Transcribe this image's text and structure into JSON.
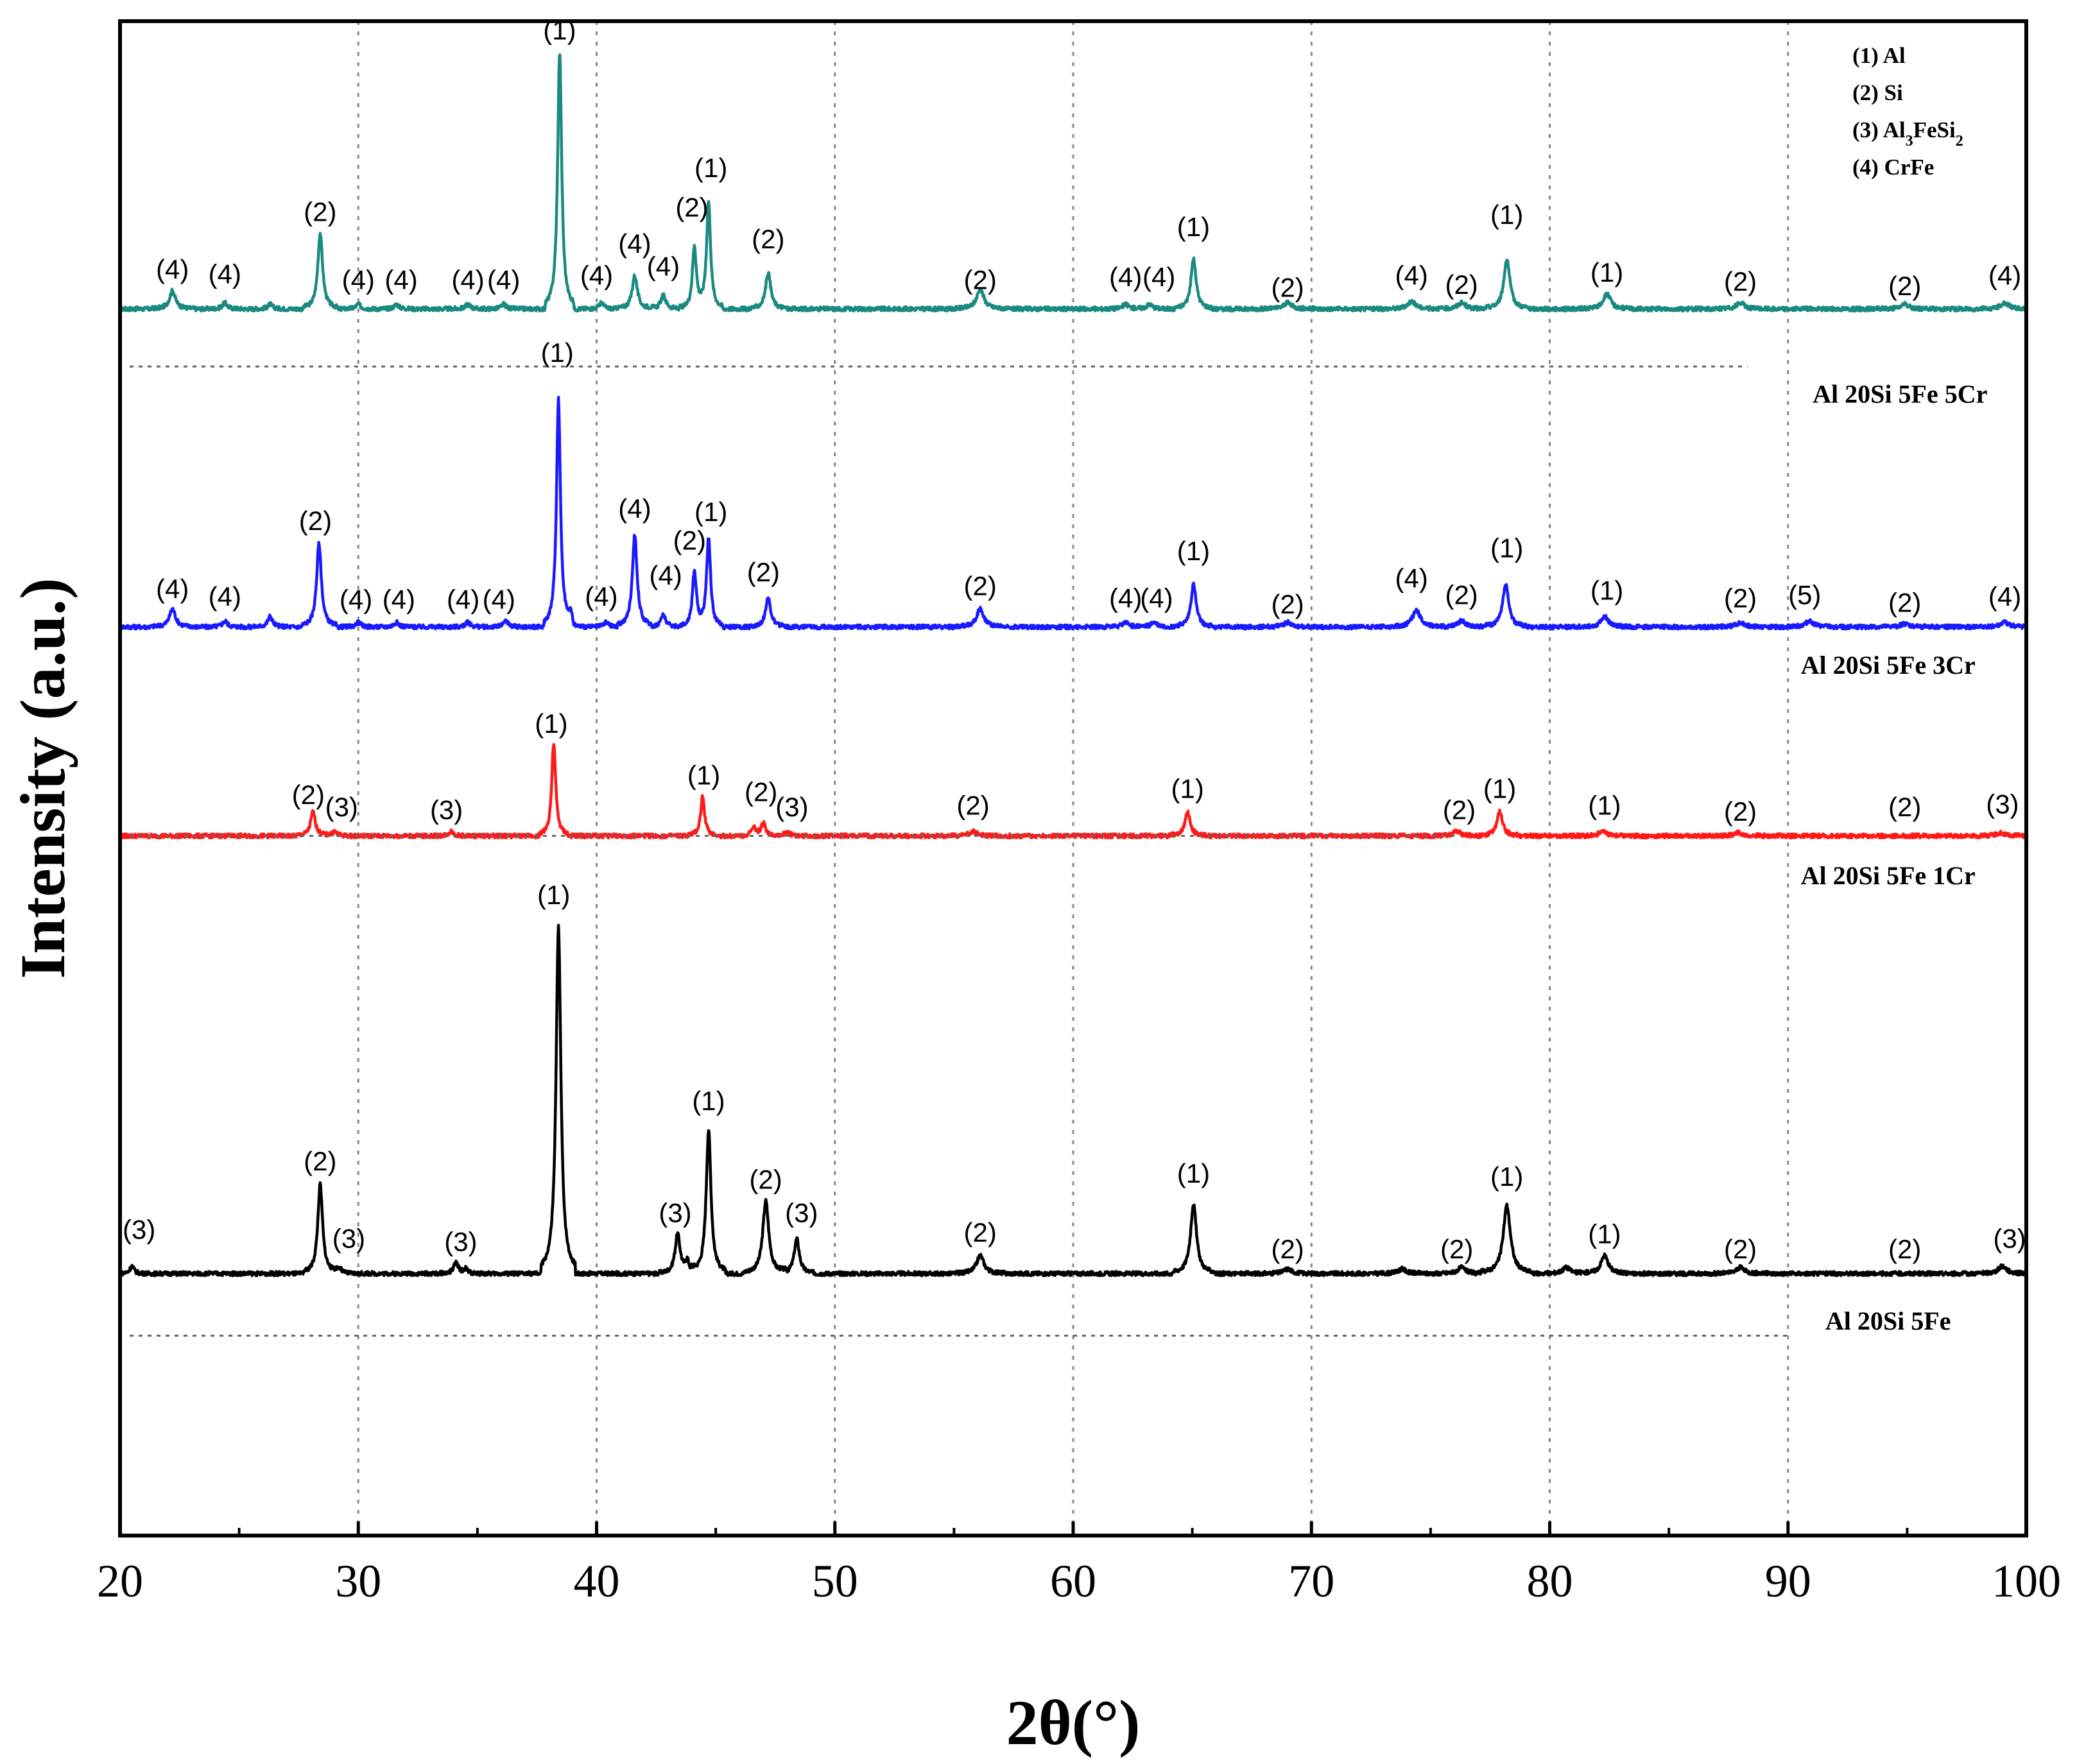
{
  "chart_data": {
    "type": "line",
    "title": "",
    "xlabel": "2θ(°)",
    "ylabel": "Intensity (a.u.)",
    "xlim": [
      20,
      100
    ],
    "ylim": [
      0,
      100
    ],
    "x_ticks": [
      "20",
      "30",
      "40",
      "50",
      "60",
      "70",
      "80",
      "90",
      "100"
    ],
    "y_ticks_shown": false,
    "grid": "dotted vertical lines at 30, 40, 50, 60, 70, 80, 90",
    "legend": {
      "placement": "top-right",
      "entries": [
        {
          "text": "(1) Al",
          "sub": "",
          "tail": ""
        },
        {
          "text": "(2) Si",
          "sub": "",
          "tail": ""
        },
        {
          "text": "(3) Al",
          "sub": "3",
          "tail": "FeSi",
          "sub2": "2"
        },
        {
          "text": "(4) CrFe",
          "sub": "",
          "tail": ""
        }
      ]
    },
    "series": [
      {
        "name": "Al 20Si 5Fe 5Cr",
        "color": "#1a8a80",
        "baseline": 81.0,
        "ref_line": 77.2,
        "ref_line_xmax": 88.3,
        "label_y": 74.8,
        "label_x": 94.7,
        "peaks": [
          {
            "x": 22.2,
            "h": 1.2,
            "w": 0.15
          },
          {
            "x": 24.4,
            "h": 0.4,
            "w": 0.12
          },
          {
            "x": 26.3,
            "h": 0.3,
            "w": 0.12
          },
          {
            "x": 28.4,
            "h": 5.0,
            "w": 0.12
          },
          {
            "x": 30.0,
            "h": 0.3,
            "w": 0.12
          },
          {
            "x": 31.6,
            "h": 0.3,
            "w": 0.12
          },
          {
            "x": 34.6,
            "h": 0.3,
            "w": 0.12
          },
          {
            "x": 36.1,
            "h": 0.3,
            "w": 0.12
          },
          {
            "x": 38.45,
            "h": 17.0,
            "w": 0.1
          },
          {
            "x": 40.2,
            "h": 0.4,
            "w": 0.12
          },
          {
            "x": 41.6,
            "h": 2.2,
            "w": 0.13
          },
          {
            "x": 42.8,
            "h": 0.9,
            "w": 0.13
          },
          {
            "x": 44.1,
            "h": 4.1,
            "w": 0.1
          },
          {
            "x": 44.7,
            "h": 7.1,
            "w": 0.1
          },
          {
            "x": 47.2,
            "h": 2.4,
            "w": 0.13
          },
          {
            "x": 56.1,
            "h": 1.3,
            "w": 0.18
          },
          {
            "x": 62.2,
            "h": 0.3,
            "w": 0.15
          },
          {
            "x": 63.2,
            "h": 0.3,
            "w": 0.15
          },
          {
            "x": 65.05,
            "h": 3.3,
            "w": 0.13
          },
          {
            "x": 69.0,
            "h": 0.4,
            "w": 0.2
          },
          {
            "x": 74.2,
            "h": 0.5,
            "w": 0.2
          },
          {
            "x": 76.3,
            "h": 0.4,
            "w": 0.2
          },
          {
            "x": 78.2,
            "h": 3.3,
            "w": 0.15
          },
          {
            "x": 82.4,
            "h": 1.0,
            "w": 0.18
          },
          {
            "x": 88.0,
            "h": 0.4,
            "w": 0.2
          },
          {
            "x": 94.9,
            "h": 0.3,
            "w": 0.2
          },
          {
            "x": 99.1,
            "h": 0.4,
            "w": 0.2
          }
        ],
        "labels": [
          {
            "t": "(4)",
            "x": 22.2,
            "y": 83.0
          },
          {
            "t": "(4)",
            "x": 24.4,
            "y": 82.7
          },
          {
            "t": "(2)",
            "x": 28.4,
            "y": 86.8
          },
          {
            "t": "(4)",
            "x": 30.0,
            "y": 82.3
          },
          {
            "t": "(4)",
            "x": 31.8,
            "y": 82.3
          },
          {
            "t": "(4)",
            "x": 34.6,
            "y": 82.3
          },
          {
            "t": "(4)",
            "x": 36.1,
            "y": 82.3
          },
          {
            "t": "(1)",
            "x": 38.45,
            "y": 98.8
          },
          {
            "t": "(4)",
            "x": 40.0,
            "y": 82.6
          },
          {
            "t": "(4)",
            "x": 41.6,
            "y": 84.7
          },
          {
            "t": "(4)",
            "x": 42.8,
            "y": 83.2
          },
          {
            "t": "(2)",
            "x": 44.0,
            "y": 87.1
          },
          {
            "t": "(1)",
            "x": 44.8,
            "y": 89.7
          },
          {
            "t": "(2)",
            "x": 47.2,
            "y": 85.0
          },
          {
            "t": "(2)",
            "x": 56.1,
            "y": 82.3
          },
          {
            "t": "(4)",
            "x": 62.2,
            "y": 82.5
          },
          {
            "t": "(4)",
            "x": 63.6,
            "y": 82.5
          },
          {
            "t": "(1)",
            "x": 65.05,
            "y": 85.8
          },
          {
            "t": "(2)",
            "x": 69.0,
            "y": 81.8
          },
          {
            "t": "(4)",
            "x": 74.2,
            "y": 82.6
          },
          {
            "t": "(2)",
            "x": 76.3,
            "y": 82.0
          },
          {
            "t": "(1)",
            "x": 78.2,
            "y": 86.6
          },
          {
            "t": "(1)",
            "x": 82.4,
            "y": 82.8
          },
          {
            "t": "(2)",
            "x": 88.0,
            "y": 82.2
          },
          {
            "t": "(2)",
            "x": 94.9,
            "y": 81.9
          },
          {
            "t": "(4)",
            "x": 99.1,
            "y": 82.6
          }
        ]
      },
      {
        "name": "Al 20Si 5Fe 3Cr",
        "color": "#1a1aff",
        "baseline": 60.0,
        "ref_line": null,
        "label_y": 56.9,
        "label_x": 94.2,
        "peaks": [
          {
            "x": 22.2,
            "h": 1.2,
            "w": 0.15
          },
          {
            "x": 24.4,
            "h": 0.4,
            "w": 0.12
          },
          {
            "x": 26.3,
            "h": 0.7,
            "w": 0.12
          },
          {
            "x": 28.35,
            "h": 5.5,
            "w": 0.12
          },
          {
            "x": 30.0,
            "h": 0.3,
            "w": 0.12
          },
          {
            "x": 31.6,
            "h": 0.3,
            "w": 0.12
          },
          {
            "x": 34.6,
            "h": 0.3,
            "w": 0.12
          },
          {
            "x": 36.2,
            "h": 0.4,
            "w": 0.12
          },
          {
            "x": 38.4,
            "h": 15.0,
            "w": 0.1
          },
          {
            "x": 38.9,
            "h": 0.6,
            "w": 0.12
          },
          {
            "x": 40.4,
            "h": 0.3,
            "w": 0.12
          },
          {
            "x": 41.6,
            "h": 6.1,
            "w": 0.12
          },
          {
            "x": 42.8,
            "h": 0.8,
            "w": 0.13
          },
          {
            "x": 44.1,
            "h": 3.7,
            "w": 0.1
          },
          {
            "x": 44.7,
            "h": 5.9,
            "w": 0.1
          },
          {
            "x": 47.2,
            "h": 1.9,
            "w": 0.13
          },
          {
            "x": 56.1,
            "h": 1.2,
            "w": 0.18
          },
          {
            "x": 62.2,
            "h": 0.3,
            "w": 0.15
          },
          {
            "x": 63.4,
            "h": 0.3,
            "w": 0.15
          },
          {
            "x": 65.05,
            "h": 2.8,
            "w": 0.13
          },
          {
            "x": 69.0,
            "h": 0.3,
            "w": 0.2
          },
          {
            "x": 74.4,
            "h": 1.1,
            "w": 0.2
          },
          {
            "x": 76.3,
            "h": 0.4,
            "w": 0.2
          },
          {
            "x": 78.15,
            "h": 2.8,
            "w": 0.15
          },
          {
            "x": 82.3,
            "h": 0.7,
            "w": 0.18
          },
          {
            "x": 88.0,
            "h": 0.3,
            "w": 0.2
          },
          {
            "x": 90.9,
            "h": 0.4,
            "w": 0.2
          },
          {
            "x": 94.9,
            "h": 0.2,
            "w": 0.2
          },
          {
            "x": 99.1,
            "h": 0.3,
            "w": 0.2
          }
        ],
        "labels": [
          {
            "t": "(4)",
            "x": 22.2,
            "y": 61.9
          },
          {
            "t": "(4)",
            "x": 24.4,
            "y": 61.4
          },
          {
            "t": "(2)",
            "x": 28.2,
            "y": 66.4
          },
          {
            "t": "(4)",
            "x": 29.9,
            "y": 61.2
          },
          {
            "t": "(4)",
            "x": 31.7,
            "y": 61.2
          },
          {
            "t": "(4)",
            "x": 34.4,
            "y": 61.2
          },
          {
            "t": "(4)",
            "x": 35.9,
            "y": 61.2
          },
          {
            "t": "(1)",
            "x": 38.35,
            "y": 77.5
          },
          {
            "t": "(4)",
            "x": 40.2,
            "y": 61.4
          },
          {
            "t": "(4)",
            "x": 41.6,
            "y": 67.2
          },
          {
            "t": "(4)",
            "x": 42.9,
            "y": 62.8
          },
          {
            "t": "(2)",
            "x": 43.9,
            "y": 65.1
          },
          {
            "t": "(1)",
            "x": 44.8,
            "y": 67.0
          },
          {
            "t": "(2)",
            "x": 47.0,
            "y": 63.0
          },
          {
            "t": "(2)",
            "x": 56.1,
            "y": 62.1
          },
          {
            "t": "(4)",
            "x": 62.2,
            "y": 61.3
          },
          {
            "t": "(4)",
            "x": 63.5,
            "y": 61.3
          },
          {
            "t": "(1)",
            "x": 65.05,
            "y": 64.4
          },
          {
            "t": "(2)",
            "x": 69.0,
            "y": 60.9
          },
          {
            "t": "(4)",
            "x": 74.2,
            "y": 62.6
          },
          {
            "t": "(2)",
            "x": 76.3,
            "y": 61.5
          },
          {
            "t": "(1)",
            "x": 78.2,
            "y": 64.6
          },
          {
            "t": "(1)",
            "x": 82.4,
            "y": 61.8
          },
          {
            "t": "(2)",
            "x": 88.0,
            "y": 61.3
          },
          {
            "t": "(5)",
            "x": 90.7,
            "y": 61.5
          },
          {
            "t": "(2)",
            "x": 94.9,
            "y": 61.0
          },
          {
            "t": "(4)",
            "x": 99.1,
            "y": 61.4
          }
        ]
      },
      {
        "name": "Al 20Si 5Fe 1Cr",
        "color": "#ff1a1a",
        "baseline": 46.2,
        "ref_line": 46.2,
        "ref_line_xmax": 76.0,
        "label_y": 43.0,
        "label_x": 94.2,
        "peaks": [
          {
            "x": 28.1,
            "h": 1.6,
            "w": 0.12
          },
          {
            "x": 29.0,
            "h": 0.3,
            "w": 0.12
          },
          {
            "x": 33.9,
            "h": 0.3,
            "w": 0.12
          },
          {
            "x": 38.2,
            "h": 6.1,
            "w": 0.1
          },
          {
            "x": 44.45,
            "h": 2.6,
            "w": 0.1
          },
          {
            "x": 46.6,
            "h": 0.5,
            "w": 0.12
          },
          {
            "x": 47.0,
            "h": 0.8,
            "w": 0.12
          },
          {
            "x": 48.0,
            "h": 0.3,
            "w": 0.12
          },
          {
            "x": 55.8,
            "h": 0.3,
            "w": 0.18
          },
          {
            "x": 64.8,
            "h": 1.6,
            "w": 0.13
          },
          {
            "x": 76.1,
            "h": 0.3,
            "w": 0.18
          },
          {
            "x": 77.9,
            "h": 1.6,
            "w": 0.14
          },
          {
            "x": 82.2,
            "h": 0.3,
            "w": 0.18
          },
          {
            "x": 87.9,
            "h": 0.2,
            "w": 0.2
          },
          {
            "x": 98.9,
            "h": 0.2,
            "w": 0.2
          }
        ],
        "labels": [
          {
            "t": "(2)",
            "x": 27.9,
            "y": 48.3
          },
          {
            "t": "(3)",
            "x": 29.3,
            "y": 47.5
          },
          {
            "t": "(3)",
            "x": 33.7,
            "y": 47.3
          },
          {
            "t": "(1)",
            "x": 38.1,
            "y": 53.0
          },
          {
            "t": "(1)",
            "x": 44.5,
            "y": 49.6
          },
          {
            "t": "(2)",
            "x": 46.9,
            "y": 48.5
          },
          {
            "t": "(3)",
            "x": 48.2,
            "y": 47.5
          },
          {
            "t": "(2)",
            "x": 55.8,
            "y": 47.6
          },
          {
            "t": "(1)",
            "x": 64.8,
            "y": 48.7
          },
          {
            "t": "(2)",
            "x": 76.2,
            "y": 47.3
          },
          {
            "t": "(1)",
            "x": 77.9,
            "y": 48.7
          },
          {
            "t": "(1)",
            "x": 82.3,
            "y": 47.6
          },
          {
            "t": "(2)",
            "x": 88.0,
            "y": 47.2
          },
          {
            "t": "(2)",
            "x": 94.9,
            "y": 47.5
          },
          {
            "t": "(3)",
            "x": 99.0,
            "y": 47.7
          }
        ]
      },
      {
        "name": "Al 20Si 5Fe",
        "color": "#000000",
        "baseline": 17.3,
        "ref_line": 13.2,
        "ref_line_xmax": 90.0,
        "label_y": 13.6,
        "label_x": 94.2,
        "peaks": [
          {
            "x": 20.5,
            "h": 0.5,
            "w": 0.1
          },
          {
            "x": 28.4,
            "h": 5.9,
            "w": 0.12
          },
          {
            "x": 29.2,
            "h": 0.4,
            "w": 0.12
          },
          {
            "x": 34.1,
            "h": 0.7,
            "w": 0.12
          },
          {
            "x": 34.5,
            "h": 0.3,
            "w": 0.1
          },
          {
            "x": 38.4,
            "h": 23.0,
            "w": 0.12
          },
          {
            "x": 43.4,
            "h": 2.6,
            "w": 0.13
          },
          {
            "x": 43.8,
            "h": 0.8,
            "w": 0.1
          },
          {
            "x": 44.7,
            "h": 9.5,
            "w": 0.12
          },
          {
            "x": 47.1,
            "h": 4.8,
            "w": 0.15
          },
          {
            "x": 48.4,
            "h": 2.3,
            "w": 0.13
          },
          {
            "x": 56.1,
            "h": 1.2,
            "w": 0.18
          },
          {
            "x": 65.05,
            "h": 4.6,
            "w": 0.15
          },
          {
            "x": 69.0,
            "h": 0.3,
            "w": 0.2
          },
          {
            "x": 73.8,
            "h": 0.3,
            "w": 0.2
          },
          {
            "x": 76.3,
            "h": 0.4,
            "w": 0.2
          },
          {
            "x": 78.2,
            "h": 4.5,
            "w": 0.18
          },
          {
            "x": 80.7,
            "h": 0.4,
            "w": 0.2
          },
          {
            "x": 82.3,
            "h": 1.2,
            "w": 0.18
          },
          {
            "x": 88.0,
            "h": 0.4,
            "w": 0.2
          },
          {
            "x": 99.0,
            "h": 0.5,
            "w": 0.2
          }
        ],
        "labels": [
          {
            "t": "(3)",
            "x": 20.8,
            "y": 19.6
          },
          {
            "t": "(2)",
            "x": 28.4,
            "y": 24.1
          },
          {
            "t": "(3)",
            "x": 29.6,
            "y": 19.0
          },
          {
            "t": "(3)",
            "x": 34.3,
            "y": 18.8
          },
          {
            "t": "(1)",
            "x": 38.2,
            "y": 41.7
          },
          {
            "t": "(3)",
            "x": 43.3,
            "y": 20.7
          },
          {
            "t": "(1)",
            "x": 44.7,
            "y": 28.1
          },
          {
            "t": "(2)",
            "x": 47.1,
            "y": 22.9
          },
          {
            "t": "(3)",
            "x": 48.6,
            "y": 20.7
          },
          {
            "t": "(2)",
            "x": 56.1,
            "y": 19.4
          },
          {
            "t": "(1)",
            "x": 65.05,
            "y": 23.3
          },
          {
            "t": "(2)",
            "x": 69.0,
            "y": 18.3
          },
          {
            "t": "(2)",
            "x": 76.1,
            "y": 18.3
          },
          {
            "t": "(1)",
            "x": 78.2,
            "y": 23.1
          },
          {
            "t": "(1)",
            "x": 82.3,
            "y": 19.3
          },
          {
            "t": "(2)",
            "x": 88.0,
            "y": 18.3
          },
          {
            "t": "(2)",
            "x": 94.9,
            "y": 18.3
          },
          {
            "t": "(3)",
            "x": 99.3,
            "y": 19.0
          }
        ]
      }
    ]
  }
}
